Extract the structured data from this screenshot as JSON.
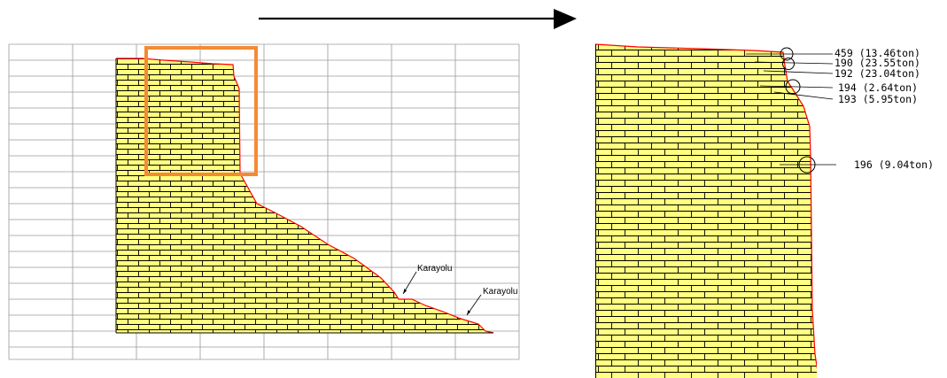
{
  "colors": {
    "rock_fill": "#ffff80",
    "brick_line": "#000000",
    "profile_line": "#ff0000",
    "grid_line": "#9a9a9a",
    "highlight_box": "#f58a33",
    "arrow": "#000000"
  },
  "overview": {
    "road_labels": [
      "Karayolu",
      "Karayolu"
    ]
  },
  "detail": {
    "rock_labels": [
      "459 (13.46ton)",
      "190 (23.55ton)",
      "192 (23.04ton)",
      "194 (2.64ton)",
      "193 (5.95ton)",
      "196 (9.04ton)"
    ]
  },
  "icons": {
    "arrow": "right-arrow-icon",
    "marker": "circle-marker-icon"
  }
}
